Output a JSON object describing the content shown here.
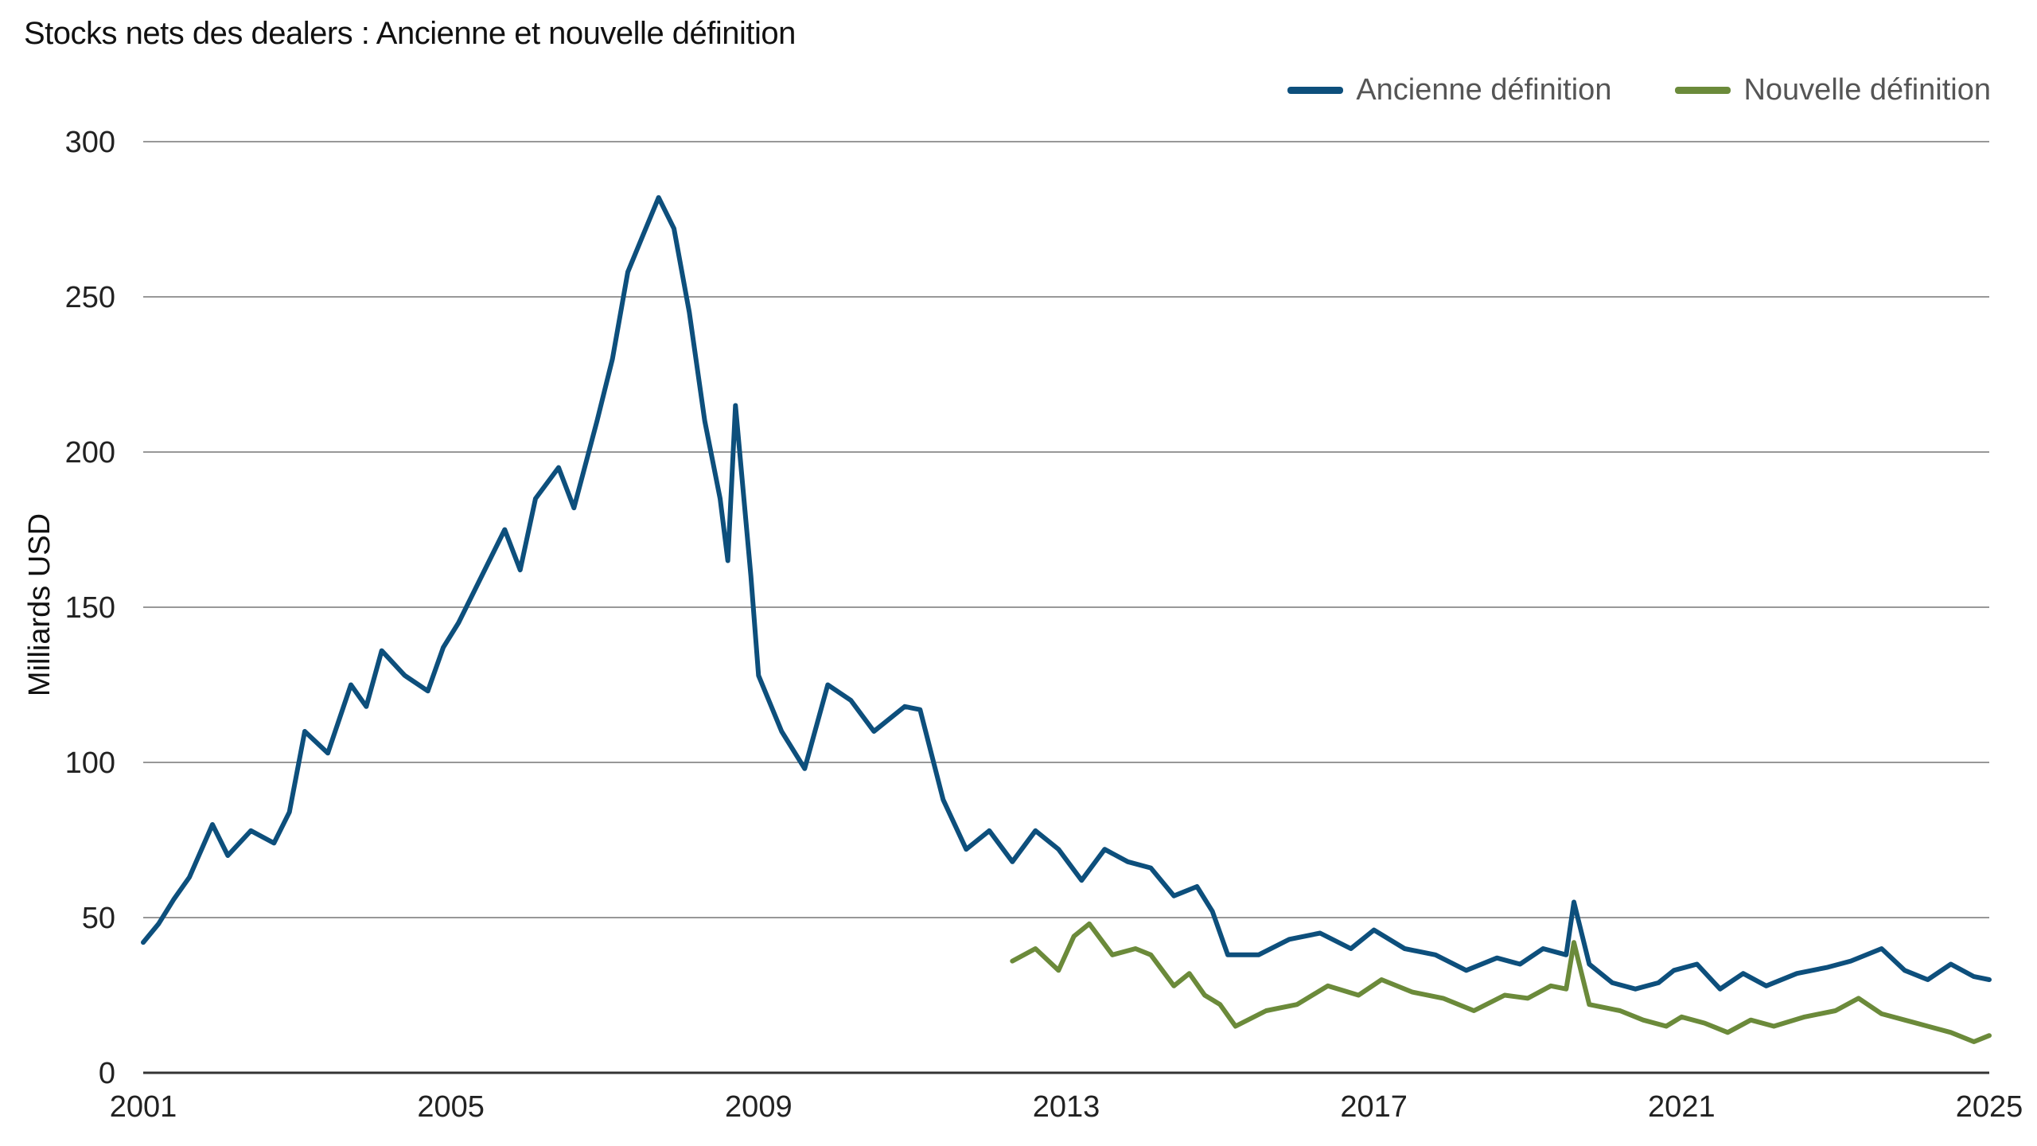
{
  "chart_data": {
    "type": "line",
    "title": "Stocks nets des dealers : Ancienne et nouvelle définition",
    "ylabel": "Milliards USD",
    "xlabel": "",
    "xlim": [
      2001,
      2025
    ],
    "ylim": [
      0,
      300
    ],
    "grid": true,
    "legend_position": "top-right",
    "x_ticks": [
      "2001",
      "2005",
      "2009",
      "2013",
      "2017",
      "2021",
      "2025"
    ],
    "x_tick_values": [
      2001,
      2005,
      2009,
      2013,
      2017,
      2021,
      2025
    ],
    "y_ticks": [
      "0",
      "50",
      "100",
      "150",
      "200",
      "250",
      "300"
    ],
    "y_tick_values": [
      0,
      50,
      100,
      150,
      200,
      250,
      300
    ],
    "series": [
      {
        "name": "Ancienne définition",
        "color": "#0d4f7c",
        "x": [
          2001.0,
          2001.2,
          2001.4,
          2001.6,
          2001.9,
          2002.1,
          2002.4,
          2002.7,
          2002.9,
          2003.1,
          2003.4,
          2003.7,
          2003.9,
          2004.1,
          2004.4,
          2004.7,
          2004.9,
          2005.1,
          2005.4,
          2005.7,
          2005.9,
          2006.1,
          2006.4,
          2006.6,
          2006.9,
          2007.1,
          2007.3,
          2007.5,
          2007.7,
          2007.9,
          2008.1,
          2008.3,
          2008.5,
          2008.6,
          2008.7,
          2008.9,
          2009.0,
          2009.3,
          2009.6,
          2009.9,
          2010.2,
          2010.5,
          2010.9,
          2011.1,
          2011.4,
          2011.7,
          2012.0,
          2012.3,
          2012.6,
          2012.9,
          2013.2,
          2013.5,
          2013.8,
          2014.1,
          2014.4,
          2014.7,
          2014.9,
          2015.1,
          2015.5,
          2015.9,
          2016.3,
          2016.7,
          2017.0,
          2017.4,
          2017.8,
          2018.2,
          2018.6,
          2018.9,
          2019.2,
          2019.5,
          2019.6,
          2019.8,
          2020.1,
          2020.4,
          2020.7,
          2020.9,
          2021.2,
          2021.5,
          2021.8,
          2022.1,
          2022.5,
          2022.9,
          2023.2,
          2023.6,
          2023.9,
          2024.2,
          2024.5,
          2024.8,
          2025.0
        ],
        "values": [
          42,
          48,
          56,
          63,
          80,
          70,
          78,
          74,
          84,
          110,
          103,
          125,
          118,
          136,
          128,
          123,
          137,
          145,
          160,
          175,
          162,
          185,
          195,
          182,
          210,
          230,
          258,
          270,
          282,
          272,
          245,
          210,
          185,
          165,
          215,
          160,
          128,
          110,
          98,
          125,
          120,
          110,
          118,
          117,
          88,
          72,
          78,
          68,
          78,
          72,
          62,
          72,
          68,
          66,
          57,
          60,
          52,
          38,
          38,
          43,
          45,
          40,
          46,
          40,
          38,
          33,
          37,
          35,
          40,
          38,
          55,
          35,
          29,
          27,
          29,
          33,
          35,
          27,
          32,
          28,
          32,
          34,
          36,
          40,
          33,
          30,
          35,
          31,
          30
        ]
      },
      {
        "name": "Nouvelle définition",
        "color": "#6b8a3a",
        "x": [
          2012.3,
          2012.6,
          2012.9,
          2013.1,
          2013.3,
          2013.6,
          2013.9,
          2014.1,
          2014.4,
          2014.6,
          2014.8,
          2015.0,
          2015.2,
          2015.6,
          2016.0,
          2016.4,
          2016.8,
          2017.1,
          2017.5,
          2017.9,
          2018.3,
          2018.7,
          2019.0,
          2019.3,
          2019.5,
          2019.6,
          2019.8,
          2020.2,
          2020.5,
          2020.8,
          2021.0,
          2021.3,
          2021.6,
          2021.9,
          2022.2,
          2022.6,
          2023.0,
          2023.3,
          2023.6,
          2023.9,
          2024.2,
          2024.5,
          2024.8,
          2025.0
        ],
        "values": [
          36,
          40,
          33,
          44,
          48,
          38,
          40,
          38,
          28,
          32,
          25,
          22,
          15,
          20,
          22,
          28,
          25,
          30,
          26,
          24,
          20,
          25,
          24,
          28,
          27,
          42,
          22,
          20,
          17,
          15,
          18,
          16,
          13,
          17,
          15,
          18,
          20,
          24,
          19,
          17,
          15,
          13,
          10,
          12
        ]
      }
    ]
  }
}
